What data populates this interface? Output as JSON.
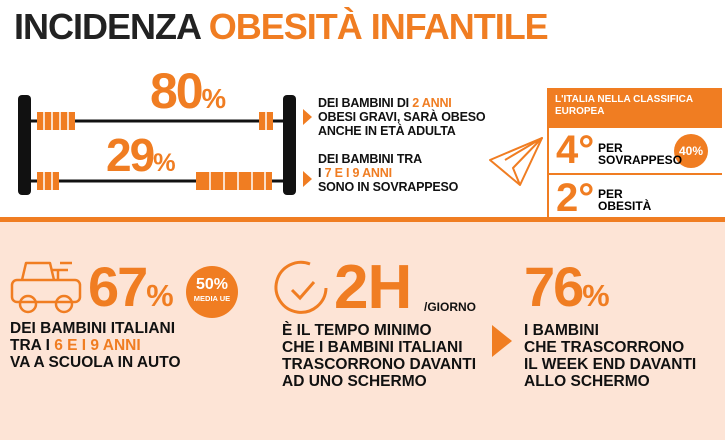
{
  "title": [
    {
      "text": "INCIDENZA",
      "accent": false
    },
    {
      "text": "OBESITÀ INFANTILE",
      "accent": true
    }
  ],
  "top": {
    "stat1": {
      "number": "80",
      "unit": "%",
      "lines": [
        [
          {
            "text": "DEI BAMBINI DI",
            "accent": false
          },
          {
            "text": "2 ANNI",
            "accent": true
          }
        ],
        [
          {
            "text": "OBESI GRAVI, SARÀ OBESO",
            "accent": false
          }
        ],
        [
          {
            "text": "ANCHE IN ETÀ ADULTA",
            "accent": false
          }
        ]
      ]
    },
    "stat2": {
      "number": "29",
      "unit": "%",
      "lines": [
        [
          {
            "text": "DEI BAMBINI TRA",
            "accent": false
          }
        ],
        [
          {
            "text": "I",
            "accent": false
          },
          {
            "text": "7 E I 9 ANNI",
            "accent": true
          }
        ],
        [
          {
            "text": "SONO IN SOVRAPPESO",
            "accent": false
          }
        ]
      ]
    },
    "ranking": {
      "header": [
        "L'ITALIA NELLA CLASSIFICA",
        "EUROPEA"
      ],
      "rows": [
        {
          "rank": "4°",
          "label": [
            "PER",
            "SOVRAPPESO"
          ],
          "badge": "40%"
        },
        {
          "rank": "2°",
          "label": [
            "PER",
            "OBESITÀ"
          ]
        }
      ]
    }
  },
  "bottom": {
    "car": {
      "number": "67",
      "unit": "%",
      "badge": [
        "50%",
        "MEDIA UE"
      ],
      "lines": [
        [
          {
            "text": "DEI BAMBINI ITALIANI",
            "accent": false
          }
        ],
        [
          {
            "text": "TRA I",
            "accent": false
          },
          {
            "text": "6 E I 9 ANNI",
            "accent": true
          }
        ],
        [
          {
            "text": "VA A SCUOLA IN AUTO",
            "accent": false
          }
        ]
      ]
    },
    "screen": {
      "number": "2H",
      "unit": "/GIORNO",
      "lines": [
        [
          {
            "text": "È IL TEMPO MINIMO",
            "accent": false
          }
        ],
        [
          {
            "text": "CHE I BAMBINI ITALIANI",
            "accent": false
          }
        ],
        [
          {
            "text": "TRASCORRONO DAVANTI",
            "accent": false
          }
        ],
        [
          {
            "text": "AD UNO SCHERMO",
            "accent": false
          }
        ]
      ]
    },
    "weekend": {
      "number": "76",
      "unit": "%",
      "lines": [
        [
          {
            "text": "I BAMBINI",
            "accent": false
          }
        ],
        [
          {
            "text": "CHE TRASCORRONO",
            "accent": false
          }
        ],
        [
          {
            "text": "IL WEEK END DAVANTI",
            "accent": false
          }
        ],
        [
          {
            "text": "ALLO SCHERMO",
            "accent": false
          }
        ]
      ]
    }
  }
}
